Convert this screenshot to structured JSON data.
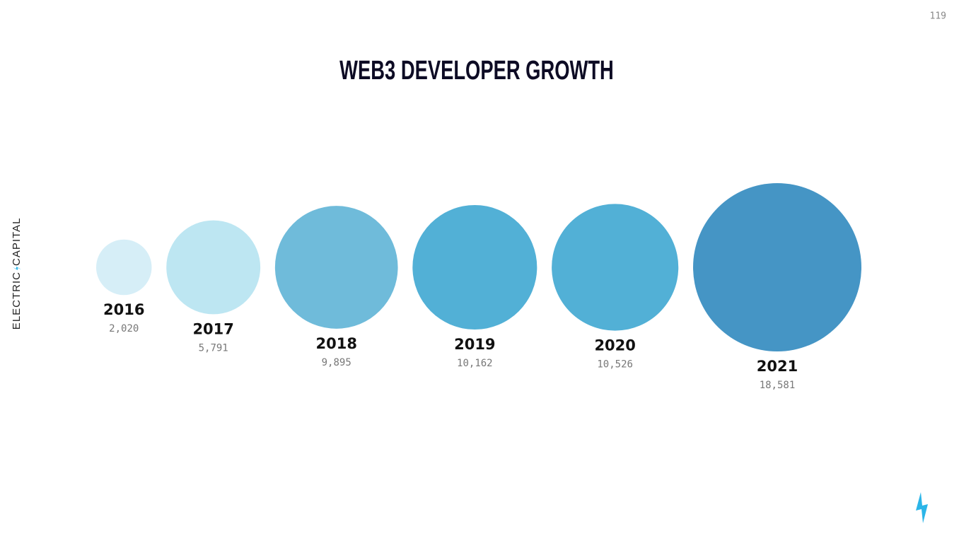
{
  "page_number": "119",
  "brand": {
    "left": "ELECTRIC",
    "right": "CAPITAL"
  },
  "chart_data": {
    "type": "bubble",
    "title": "WEB3 DEVELOPER GROWTH",
    "categories": [
      "2016",
      "2017",
      "2018",
      "2019",
      "2020",
      "2021"
    ],
    "values": [
      2020,
      5791,
      9895,
      10162,
      10526,
      18581
    ],
    "value_labels": [
      "2,020",
      "5,791",
      "9,895",
      "10,162",
      "10,526",
      "18,581"
    ],
    "colors": [
      "#d6eef7",
      "#bde6f2",
      "#6fbbda",
      "#52b0d6",
      "#52b0d6",
      "#4595c5"
    ]
  }
}
